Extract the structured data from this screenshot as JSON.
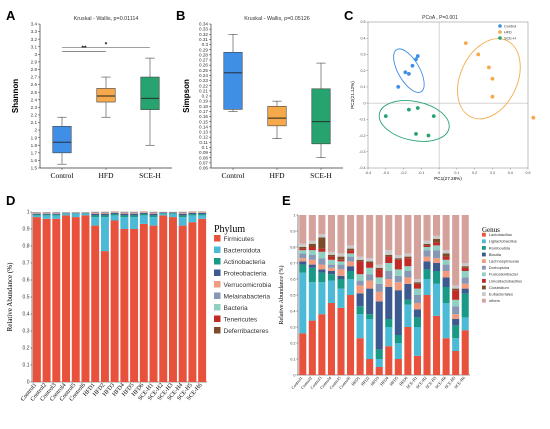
{
  "panels": {
    "A": "A",
    "B": "B",
    "C": "C",
    "D": "D",
    "E": "E"
  },
  "chart_data": [
    {
      "id": "A",
      "type": "box",
      "title": "Kruskal - Wallis, p=0.01114",
      "ylabel": "Shannon",
      "categories": [
        "Control",
        "HFD",
        "SCE-H"
      ],
      "colors": [
        "#3f8fe6",
        "#f6a94a",
        "#27a36f"
      ],
      "ylim": [
        1.5,
        3.4
      ],
      "yticks": [
        1.5,
        1.6,
        1.7,
        1.8,
        1.9,
        2,
        2.1,
        2.2,
        2.3,
        2.4,
        2.5,
        2.6,
        2.7,
        2.8,
        2.9,
        3,
        3.1,
        3.2,
        3.3,
        3.4
      ],
      "boxes": [
        {
          "min": 1.55,
          "q1": 1.7,
          "median": 1.84,
          "q3": 2.05,
          "max": 2.17
        },
        {
          "min": 2.17,
          "q1": 2.37,
          "median": 2.45,
          "q3": 2.55,
          "max": 2.7
        },
        {
          "min": 1.8,
          "q1": 2.27,
          "median": 2.42,
          "q3": 2.7,
          "max": 2.95
        }
      ],
      "brackets": [
        {
          "from": 0,
          "to": 1,
          "label": "**",
          "y": 3.04
        },
        {
          "from": 0,
          "to": 2,
          "label": "*",
          "y": 3.09
        }
      ]
    },
    {
      "id": "B",
      "type": "box",
      "title": "Kruskal - Wallis, p=0.05126",
      "ylabel": "Simpson",
      "categories": [
        "Control",
        "HFD",
        "SCE-H"
      ],
      "colors": [
        "#3f8fe6",
        "#f6a94a",
        "#27a36f"
      ],
      "ylim": [
        0.06,
        0.34
      ],
      "yticks": [
        0.06,
        0.07,
        0.08,
        0.09,
        0.1,
        0.11,
        0.12,
        0.13,
        0.14,
        0.15,
        0.16,
        0.17,
        0.18,
        0.19,
        0.2,
        0.21,
        0.22,
        0.23,
        0.24,
        0.25,
        0.26,
        0.27,
        0.28,
        0.29,
        0.3,
        0.31,
        0.32,
        0.33,
        0.34
      ],
      "boxes": [
        {
          "min": 0.17,
          "q1": 0.174,
          "median": 0.245,
          "q3": 0.285,
          "max": 0.32
        },
        {
          "min": 0.117,
          "q1": 0.142,
          "median": 0.157,
          "q3": 0.18,
          "max": 0.19
        },
        {
          "min": 0.08,
          "q1": 0.107,
          "median": 0.15,
          "q3": 0.214,
          "max": 0.264
        }
      ]
    },
    {
      "id": "C",
      "type": "scatter",
      "title": "PCoA , P=0.001",
      "xlabel": "PC1(27.28%)",
      "ylabel": "PC2(21.12%)",
      "xlim": [
        -0.4,
        0.5
      ],
      "ylim": [
        -0.4,
        0.5
      ],
      "xticks": [
        -0.4,
        -0.3,
        -0.2,
        -0.1,
        0,
        0.1,
        0.2,
        0.3,
        0.4,
        0.5
      ],
      "yticks": [
        -0.4,
        -0.3,
        -0.2,
        -0.1,
        0,
        0.1,
        0.2,
        0.3,
        0.4,
        0.5
      ],
      "legend": [
        "Control",
        "HFD",
        "SCE-H"
      ],
      "colors": [
        "#3f8fe6",
        "#f6a94a",
        "#27a36f"
      ],
      "series": [
        {
          "name": "Control",
          "points": [
            [
              -0.23,
              0.1
            ],
            [
              -0.19,
              0.19
            ],
            [
              -0.15,
              0.23
            ],
            [
              -0.12,
              0.29
            ],
            [
              -0.17,
              0.18
            ],
            [
              -0.13,
              0.27
            ]
          ]
        },
        {
          "name": "HFD",
          "points": [
            [
              0.15,
              0.37
            ],
            [
              0.22,
              0.3
            ],
            [
              0.28,
              0.22
            ],
            [
              0.3,
              0.15
            ],
            [
              0.3,
              0.04
            ],
            [
              0.53,
              -0.09
            ]
          ]
        },
        {
          "name": "SCE-H",
          "points": [
            [
              -0.3,
              -0.08
            ],
            [
              -0.17,
              -0.04
            ],
            [
              -0.12,
              -0.03
            ],
            [
              -0.03,
              -0.08
            ],
            [
              -0.13,
              -0.19
            ],
            [
              -0.06,
              -0.2
            ]
          ]
        }
      ],
      "ellipses": [
        {
          "cx": -0.17,
          "cy": 0.2,
          "rx": 0.06,
          "ry": 0.15,
          "rot": -30
        },
        {
          "cx": 0.28,
          "cy": 0.15,
          "rx": 0.16,
          "ry": 0.26,
          "rot": 25
        },
        {
          "cx": -0.14,
          "cy": -0.11,
          "rx": 0.2,
          "ry": 0.12,
          "rot": 12
        }
      ]
    },
    {
      "id": "D",
      "type": "stacked-bar",
      "ylabel": "Relative Abundance (%)",
      "legend_title": "Phylum",
      "ylim": [
        0,
        1
      ],
      "yticks": [
        0,
        0.1,
        0.2,
        0.3,
        0.4,
        0.5,
        0.6,
        0.7,
        0.8,
        0.9,
        1
      ],
      "categories": [
        "Control1",
        "Control2",
        "Control3",
        "Control4",
        "Control5",
        "Control6",
        "HFD1",
        "HFD2",
        "HFD3",
        "HFD4",
        "HFD5",
        "HFD6",
        "SCE-H1",
        "SCE-H2",
        "SCE-H3",
        "SCE-H4",
        "SCE-H5",
        "SCE-H6"
      ],
      "series": [
        {
          "name": "Firmicutes",
          "color": "#e8513b",
          "values": [
            0.97,
            0.96,
            0.96,
            0.98,
            0.97,
            0.98,
            0.92,
            0.77,
            0.95,
            0.9,
            0.9,
            0.93,
            0.92,
            0.98,
            0.97,
            0.92,
            0.94,
            0.96
          ]
        },
        {
          "name": "Bacteroidota",
          "color": "#4bbad6",
          "values": [
            0.01,
            0.02,
            0.02,
            0.01,
            0.02,
            0.01,
            0.05,
            0.2,
            0.03,
            0.07,
            0.07,
            0.05,
            0.05,
            0.01,
            0.02,
            0.05,
            0.04,
            0.02
          ]
        },
        {
          "name": "Actinobacteria",
          "color": "#1a9a86",
          "values": [
            0.005,
            0.005,
            0.005,
            0.003,
            0.003,
            0.003,
            0.01,
            0.01,
            0.008,
            0.01,
            0.01,
            0.008,
            0.01,
            0.004,
            0.004,
            0.01,
            0.008,
            0.008
          ]
        },
        {
          "name": "Proteobacteria",
          "color": "#3c5a8f",
          "values": [
            0.005,
            0.005,
            0.005,
            0.003,
            0.003,
            0.003,
            0.01,
            0.01,
            0.006,
            0.01,
            0.01,
            0.006,
            0.01,
            0.003,
            0.003,
            0.01,
            0.006,
            0.006
          ]
        },
        {
          "name": "Verrucomicrobia",
          "color": "#f29a7e",
          "values": [
            0.003,
            0.003,
            0.003,
            0.002,
            0.002,
            0.002,
            0.004,
            0.004,
            0.003,
            0.004,
            0.004,
            0.003,
            0.004,
            0.002,
            0.002,
            0.004,
            0.003,
            0.003
          ]
        },
        {
          "name": "Melainabacteria",
          "color": "#8797b6",
          "values": [
            0.003,
            0.003,
            0.003,
            0.001,
            0.001,
            0.001,
            0.003,
            0.003,
            0.002,
            0.003,
            0.003,
            0.002,
            0.003,
            0.001,
            0.001,
            0.003,
            0.002,
            0.002
          ]
        },
        {
          "name": "Bacteria",
          "color": "#8fd0c2",
          "values": [
            0.002,
            0.002,
            0.002,
            0.001,
            0.001,
            0.001,
            0.002,
            0.002,
            0.002,
            0.002,
            0.002,
            0.002,
            0.002,
            0.001,
            0.001,
            0.002,
            0.002,
            0.002
          ]
        },
        {
          "name": "Tenericutes",
          "color": "#c12b27",
          "values": [
            0.001,
            0.001,
            0.001,
            0.0,
            0.0,
            0.0,
            0.001,
            0.001,
            0.001,
            0.001,
            0.001,
            0.001,
            0.001,
            0.0,
            0.0,
            0.001,
            0.001,
            0.001
          ]
        },
        {
          "name": "Deferribacteres",
          "color": "#7b4b2a",
          "values": [
            0.001,
            0.001,
            0.001,
            0.0,
            0.0,
            0.0,
            0.001,
            0.001,
            0.001,
            0.001,
            0.001,
            0.001,
            0.001,
            0.0,
            0.0,
            0.001,
            0.001,
            0.001
          ]
        }
      ]
    },
    {
      "id": "E",
      "type": "stacked-bar",
      "ylabel": "Relative Abundance (%)",
      "legend_title": "Genus",
      "ylim": [
        0,
        1
      ],
      "yticks": [
        0,
        0.1,
        0.2,
        0.3,
        0.4,
        0.5,
        0.6,
        0.7,
        0.8,
        0.9,
        1
      ],
      "categories": [
        "Control1",
        "Control2",
        "Control3",
        "Control4",
        "Control5",
        "Control6",
        "HFD1",
        "HFD2",
        "HFD3",
        "HFD4",
        "HFD5",
        "HFD6",
        "SCE-H1",
        "SCE-H2",
        "SCE-H3",
        "SCE-H4",
        "SCE-H5",
        "SCE-H6"
      ],
      "series": [
        {
          "name": "Lactobacillus",
          "color": "#e8513b",
          "values": [
            0.26,
            0.34,
            0.38,
            0.45,
            0.42,
            0.5,
            0.23,
            0.1,
            0.05,
            0.18,
            0.1,
            0.3,
            0.12,
            0.5,
            0.37,
            0.23,
            0.15,
            0.28
          ]
        },
        {
          "name": "Ligilactobacillus",
          "color": "#4bbad6",
          "values": [
            0.38,
            0.24,
            0.2,
            0.14,
            0.12,
            0.1,
            0.15,
            0.25,
            0.05,
            0.12,
            0.1,
            0.14,
            0.18,
            0.1,
            0.2,
            0.22,
            0.08,
            0.08
          ]
        },
        {
          "name": "Romboutsia",
          "color": "#1a9a86",
          "values": [
            0.05,
            0.09,
            0.06,
            0.04,
            0.06,
            0.05,
            0.05,
            0.03,
            0.06,
            0.05,
            0.05,
            0.03,
            0.06,
            0.06,
            0.08,
            0.1,
            0.08,
            0.15
          ]
        },
        {
          "name": "Blautia",
          "color": "#3c5a8f",
          "values": [
            0.02,
            0.02,
            0.02,
            0.02,
            0.02,
            0.03,
            0.08,
            0.16,
            0.3,
            0.2,
            0.28,
            0.1,
            0.05,
            0.05,
            0.05,
            0.06,
            0.04,
            0.03
          ]
        },
        {
          "name": "Lachnospiraceae",
          "color": "#f29a7e",
          "values": [
            0.02,
            0.03,
            0.03,
            0.02,
            0.04,
            0.03,
            0.05,
            0.05,
            0.06,
            0.05,
            0.05,
            0.04,
            0.04,
            0.03,
            0.03,
            0.04,
            0.03,
            0.03
          ]
        },
        {
          "name": "Dorbopsina",
          "color": "#8797b6",
          "values": [
            0.03,
            0.03,
            0.04,
            0.02,
            0.03,
            0.03,
            0.03,
            0.04,
            0.05,
            0.05,
            0.04,
            0.04,
            0.05,
            0.04,
            0.05,
            0.04,
            0.05,
            0.04
          ]
        },
        {
          "name": "Fusicatenibacter",
          "color": "#8fd0c2",
          "values": [
            0.02,
            0.03,
            0.04,
            0.03,
            0.02,
            0.02,
            0.04,
            0.04,
            0.04,
            0.05,
            0.04,
            0.03,
            0.04,
            0.02,
            0.03,
            0.03,
            0.04,
            0.04
          ]
        },
        {
          "name": "Limosilactobacillus",
          "color": "#c12b27",
          "values": [
            0.01,
            0.02,
            0.02,
            0.02,
            0.01,
            0.02,
            0.08,
            0.03,
            0.05,
            0.04,
            0.06,
            0.05,
            0.03,
            0.01,
            0.02,
            0.02,
            0.06,
            0.02
          ]
        },
        {
          "name": "Clostridium",
          "color": "#7b4b2a",
          "values": [
            0.01,
            0.02,
            0.07,
            0.01,
            0.02,
            0.01,
            0.01,
            0.01,
            0.01,
            0.01,
            0.01,
            0.01,
            0.01,
            0.01,
            0.02,
            0.02,
            0.01,
            0.01
          ]
        },
        {
          "name": "Eubacteriales",
          "color": "#c9c9c9",
          "values": [
            0.02,
            0.02,
            0.02,
            0.02,
            0.02,
            0.02,
            0.02,
            0.02,
            0.02,
            0.03,
            0.02,
            0.02,
            0.02,
            0.02,
            0.02,
            0.02,
            0.02,
            0.02
          ]
        },
        {
          "name": "others",
          "color": "#d4a29a",
          "values": [
            0.18,
            0.16,
            0.12,
            0.23,
            0.24,
            0.19,
            0.26,
            0.27,
            0.31,
            0.22,
            0.25,
            0.24,
            0.4,
            0.16,
            0.13,
            0.22,
            0.44,
            0.3
          ]
        }
      ]
    }
  ]
}
